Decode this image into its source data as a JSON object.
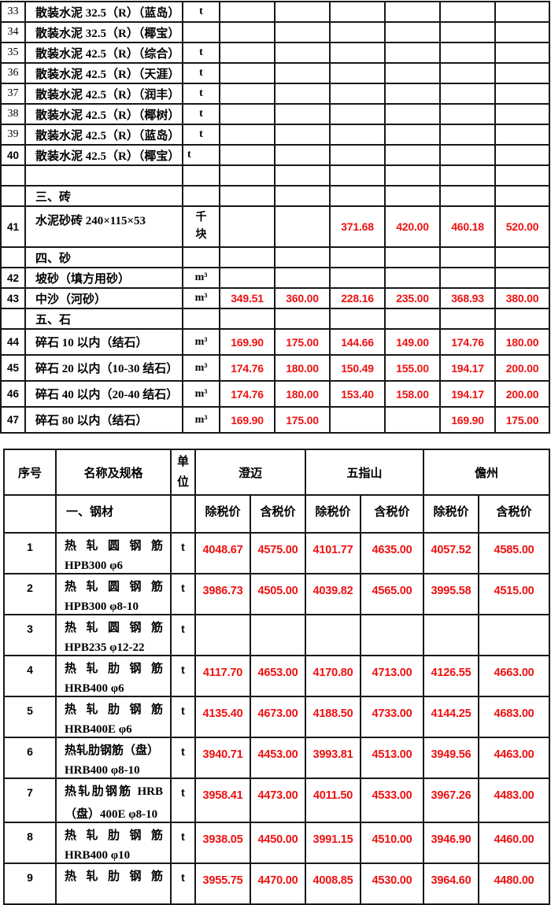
{
  "colors": {
    "value_red": "#ee1111",
    "border": "#181818",
    "background": "#ffffff"
  },
  "table1": {
    "rows": [
      {
        "kind": "item",
        "no": "33",
        "name": "散装水泥 32.5（R）（蓝岛）",
        "unit": "t",
        "values": [
          "",
          "",
          "",
          "",
          "",
          ""
        ]
      },
      {
        "kind": "item",
        "no": "34",
        "name": "散装水泥 32.5（R）（椰宝）",
        "unit": "",
        "values": [
          "",
          "",
          "",
          "",
          "",
          ""
        ]
      },
      {
        "kind": "item",
        "no": "35",
        "name": "散装水泥 42.5（R）（综合）",
        "unit": "t",
        "values": [
          "",
          "",
          "",
          "",
          "",
          ""
        ]
      },
      {
        "kind": "item",
        "no": "36",
        "name": "散装水泥 42.5（R）（天涯）",
        "unit": "t",
        "values": [
          "",
          "",
          "",
          "",
          "",
          ""
        ]
      },
      {
        "kind": "item",
        "no": "37",
        "name": "散装水泥 42.5（R）（润丰）",
        "unit": "t",
        "values": [
          "",
          "",
          "",
          "",
          "",
          ""
        ]
      },
      {
        "kind": "item",
        "no": "38",
        "name": "散装水泥 42.5（R）（椰树）",
        "unit": "t",
        "values": [
          "",
          "",
          "",
          "",
          "",
          ""
        ]
      },
      {
        "kind": "item",
        "no": "39",
        "name": "散装水泥 42.5（R）（蓝岛）",
        "unit": "t",
        "values": [
          "",
          "",
          "",
          "",
          "",
          ""
        ]
      },
      {
        "kind": "item",
        "no": "40",
        "name": "散装水泥 42.5（R）（椰宝）",
        "unit": "t",
        "values": [
          "",
          "",
          "",
          "",
          "",
          ""
        ]
      },
      {
        "kind": "spacer"
      },
      {
        "kind": "section",
        "title": "三、砖"
      },
      {
        "kind": "item",
        "no": "41",
        "name": "水泥砂砖 240×115×53",
        "unit": "千块",
        "values": [
          "",
          "",
          "371.68",
          "420.00",
          "460.18",
          "520.00"
        ]
      },
      {
        "kind": "section",
        "title": "四、砂"
      },
      {
        "kind": "item",
        "no": "42",
        "name": "坡砂（填方用砂）",
        "unit": "m³",
        "values": [
          "",
          "",
          "",
          "",
          "",
          ""
        ]
      },
      {
        "kind": "item",
        "no": "43",
        "name": "中沙（河砂）",
        "unit": "m³",
        "values": [
          "349.51",
          "360.00",
          "228.16",
          "235.00",
          "368.93",
          "380.00"
        ]
      },
      {
        "kind": "section",
        "title": "五、石"
      },
      {
        "kind": "item",
        "no": "44",
        "name": "碎石 10 以内（结石）",
        "unit": "m³",
        "values": [
          "169.90",
          "175.00",
          "144.66",
          "149.00",
          "174.76",
          "180.00"
        ]
      },
      {
        "kind": "item",
        "no": "45",
        "name": "碎石 20 以内（10-30 结石）",
        "unit": "m³",
        "values": [
          "174.76",
          "180.00",
          "150.49",
          "155.00",
          "194.17",
          "200.00"
        ]
      },
      {
        "kind": "item",
        "no": "46",
        "name": "碎石 40 以内（20-40 结石）",
        "unit": "m³",
        "values": [
          "174.76",
          "180.00",
          "153.40",
          "158.00",
          "194.17",
          "200.00"
        ]
      },
      {
        "kind": "item",
        "no": "47",
        "name": "碎石 80 以内（结石）",
        "unit": "m³",
        "values": [
          "169.90",
          "175.00",
          "",
          "",
          "169.90",
          "175.00"
        ]
      }
    ]
  },
  "table2": {
    "header": {
      "no": "序号",
      "name": "名称及规格",
      "unit": "单位",
      "cities": [
        "澄迈",
        "五指山",
        "儋州"
      ],
      "price_ex": "除税价",
      "price_inc": "含税价"
    },
    "section": "一、钢材",
    "rows": [
      {
        "no": "1",
        "line1": "热轧圆钢筋",
        "spread": true,
        "line2": "HPB300 φ6",
        "unit": "t",
        "values": [
          "4048.67",
          "4575.00",
          "4101.77",
          "4635.00",
          "4057.52",
          "4585.00"
        ]
      },
      {
        "no": "2",
        "line1": "热轧圆钢筋",
        "spread": true,
        "line2": "HPB300 φ8-10",
        "unit": "t",
        "values": [
          "3986.73",
          "4505.00",
          "4039.82",
          "4565.00",
          "3995.58",
          "4515.00"
        ]
      },
      {
        "no": "3",
        "line1": "热轧圆钢筋",
        "spread": true,
        "line2": "HPB235 φ12-22",
        "unit": "t",
        "values": [
          "",
          "",
          "",
          "",
          "",
          ""
        ]
      },
      {
        "no": "4",
        "line1": "热轧肋钢筋",
        "spread": true,
        "line2": "HRB400 φ6",
        "unit": "t",
        "values": [
          "4117.70",
          "4653.00",
          "4170.80",
          "4713.00",
          "4126.55",
          "4663.00"
        ]
      },
      {
        "no": "5",
        "line1": "热轧肋钢筋",
        "spread": true,
        "line2": "HRB400E φ6",
        "unit": "t",
        "values": [
          "4135.40",
          "4673.00",
          "4188.50",
          "4733.00",
          "4144.25",
          "4683.00"
        ]
      },
      {
        "no": "6",
        "line1": "热轧肋钢筋（盘）",
        "spread": false,
        "line2": "HRB400 φ8-10",
        "unit": "t",
        "values": [
          "3940.71",
          "4453.00",
          "3993.81",
          "4513.00",
          "3949.56",
          "4463.00"
        ]
      },
      {
        "no": "7",
        "line1": "热轧肋钢筋 HRB",
        "spread": true,
        "line2": "（盘）400E φ8-10",
        "unit": "t",
        "values": [
          "3958.41",
          "4473.00",
          "4011.50",
          "4533.00",
          "3967.26",
          "4483.00"
        ]
      },
      {
        "no": "8",
        "line1": "热轧肋钢筋",
        "spread": true,
        "line2": "HRB400 φ10",
        "unit": "t",
        "values": [
          "3938.05",
          "4450.00",
          "3991.15",
          "4510.00",
          "3946.90",
          "4460.00"
        ]
      },
      {
        "no": "9",
        "line1": "热轧肋钢筋",
        "spread": true,
        "line2": "",
        "unit": "t",
        "values": [
          "3955.75",
          "4470.00",
          "4008.85",
          "4530.00",
          "3964.60",
          "4480.00"
        ]
      }
    ]
  }
}
